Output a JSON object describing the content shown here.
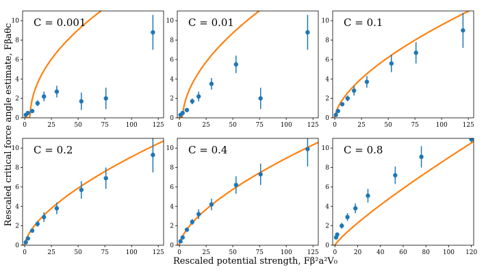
{
  "xlabel": "Rescaled potential strength, Fβ²a²V₀",
  "ylabel": "Rescaled critical force angle estimate, Fβaθc",
  "colors": {
    "data": "#1f77b4",
    "theory": "#ff7f0e"
  },
  "chart_data": [
    {
      "type": "scatter",
      "annotation": "C = 0.001",
      "xlim": [
        -2,
        130
      ],
      "ylim": [
        0,
        11
      ],
      "xticks": [
        0,
        25,
        50,
        75,
        100,
        125
      ],
      "yticks": [
        0,
        2,
        4,
        6,
        8,
        10
      ],
      "points": [
        {
          "x": 1,
          "y": 0.3,
          "err": 0.1
        },
        {
          "x": 3,
          "y": 0.5,
          "err": 0.1
        },
        {
          "x": 7,
          "y": 0.7,
          "err": 0.2
        },
        {
          "x": 12,
          "y": 1.5,
          "err": 0.3
        },
        {
          "x": 18,
          "y": 2.2,
          "err": 0.5
        },
        {
          "x": 30,
          "y": 2.7,
          "err": 0.6
        },
        {
          "x": 53,
          "y": 1.7,
          "err": 0.9
        },
        {
          "x": 76,
          "y": 2.0,
          "err": 1.1
        },
        {
          "x": 120,
          "y": 8.8,
          "err": 1.8
        }
      ],
      "theory": {
        "k": 1.35,
        "x0": 5,
        "p": 0.5
      }
    },
    {
      "type": "scatter",
      "annotation": "C = 0.01",
      "xlim": [
        -2,
        130
      ],
      "ylim": [
        0,
        11
      ],
      "xticks": [
        0,
        25,
        50,
        75,
        100,
        125
      ],
      "yticks": [
        0,
        2,
        4,
        6,
        8,
        10
      ],
      "points": [
        {
          "x": 1,
          "y": 0.3,
          "err": 0.1
        },
        {
          "x": 3,
          "y": 0.5,
          "err": 0.1
        },
        {
          "x": 7,
          "y": 0.8,
          "err": 0.2
        },
        {
          "x": 12,
          "y": 1.7,
          "err": 0.3
        },
        {
          "x": 18,
          "y": 2.2,
          "err": 0.5
        },
        {
          "x": 30,
          "y": 3.5,
          "err": 0.6
        },
        {
          "x": 53,
          "y": 5.5,
          "err": 0.9
        },
        {
          "x": 76,
          "y": 2.0,
          "err": 1.1
        },
        {
          "x": 120,
          "y": 8.8,
          "err": 1.8
        }
      ],
      "theory": {
        "k": 1.05,
        "x0": 3,
        "p": 0.55
      }
    },
    {
      "type": "scatter",
      "annotation": "C = 0.1",
      "xlim": [
        -2,
        130
      ],
      "ylim": [
        0,
        11
      ],
      "xticks": [
        0,
        25,
        50,
        75,
        100,
        125
      ],
      "yticks": [
        0,
        2,
        4,
        6,
        8,
        10
      ],
      "points": [
        {
          "x": 1,
          "y": 0.3,
          "err": 0.1
        },
        {
          "x": 3,
          "y": 0.7,
          "err": 0.1
        },
        {
          "x": 7,
          "y": 1.4,
          "err": 0.2
        },
        {
          "x": 12,
          "y": 2.0,
          "err": 0.3
        },
        {
          "x": 18,
          "y": 2.8,
          "err": 0.5
        },
        {
          "x": 30,
          "y": 3.7,
          "err": 0.6
        },
        {
          "x": 53,
          "y": 5.6,
          "err": 0.9
        },
        {
          "x": 76,
          "y": 6.7,
          "err": 1.1
        },
        {
          "x": 120,
          "y": 9.0,
          "err": 1.8
        }
      ],
      "theory": {
        "k": 0.55,
        "x0": 0,
        "p": 0.62
      }
    },
    {
      "type": "scatter",
      "annotation": "C = 0.2",
      "xlim": [
        -2,
        130
      ],
      "ylim": [
        0,
        11
      ],
      "xticks": [
        0,
        25,
        50,
        75,
        100,
        125
      ],
      "yticks": [
        0,
        2,
        4,
        6,
        8,
        10
      ],
      "points": [
        {
          "x": 1,
          "y": 0.3,
          "err": 0.1
        },
        {
          "x": 3,
          "y": 0.7,
          "err": 0.1
        },
        {
          "x": 7,
          "y": 1.5,
          "err": 0.2
        },
        {
          "x": 12,
          "y": 2.2,
          "err": 0.3
        },
        {
          "x": 18,
          "y": 2.9,
          "err": 0.5
        },
        {
          "x": 30,
          "y": 3.8,
          "err": 0.6
        },
        {
          "x": 53,
          "y": 5.7,
          "err": 0.9
        },
        {
          "x": 76,
          "y": 6.9,
          "err": 1.1
        },
        {
          "x": 120,
          "y": 9.3,
          "err": 1.8
        }
      ],
      "theory": {
        "k": 0.5,
        "x0": 0,
        "p": 0.63
      }
    },
    {
      "type": "scatter",
      "annotation": "C = 0.4",
      "xlim": [
        -2,
        130
      ],
      "ylim": [
        0,
        11
      ],
      "xticks": [
        0,
        25,
        50,
        75,
        100,
        125
      ],
      "yticks": [
        0,
        2,
        4,
        6,
        8,
        10
      ],
      "points": [
        {
          "x": 1,
          "y": 0.4,
          "err": 0.1
        },
        {
          "x": 3,
          "y": 0.8,
          "err": 0.1
        },
        {
          "x": 7,
          "y": 1.6,
          "err": 0.2
        },
        {
          "x": 12,
          "y": 2.4,
          "err": 0.3
        },
        {
          "x": 18,
          "y": 3.2,
          "err": 0.5
        },
        {
          "x": 30,
          "y": 4.2,
          "err": 0.6
        },
        {
          "x": 53,
          "y": 6.2,
          "err": 0.9
        },
        {
          "x": 76,
          "y": 7.3,
          "err": 1.1
        },
        {
          "x": 120,
          "y": 9.9,
          "err": 1.8
        }
      ],
      "theory": {
        "k": 0.47,
        "x0": 0,
        "p": 0.64
      }
    },
    {
      "type": "scatter",
      "annotation": "C = 0.8",
      "xlim": [
        -2,
        122
      ],
      "ylim": [
        0,
        11
      ],
      "xticks": [
        0,
        20,
        40,
        60,
        80,
        100,
        120
      ],
      "yticks": [
        0,
        2,
        4,
        6,
        8,
        10
      ],
      "points": [
        {
          "x": 1,
          "y": 0.8,
          "err": 0.1
        },
        {
          "x": 2,
          "y": 1.1,
          "err": 0.1
        },
        {
          "x": 6,
          "y": 2.0,
          "err": 0.3
        },
        {
          "x": 11,
          "y": 2.9,
          "err": 0.4
        },
        {
          "x": 18,
          "y": 3.8,
          "err": 0.5
        },
        {
          "x": 29,
          "y": 5.1,
          "err": 0.7
        },
        {
          "x": 53,
          "y": 7.2,
          "err": 0.9
        },
        {
          "x": 76,
          "y": 9.1,
          "err": 1.1
        },
        {
          "x": 120,
          "y": 10.9,
          "err": 0.3
        }
      ],
      "theory": {
        "k": 0.18,
        "x0": 0,
        "p": 0.85
      }
    }
  ]
}
